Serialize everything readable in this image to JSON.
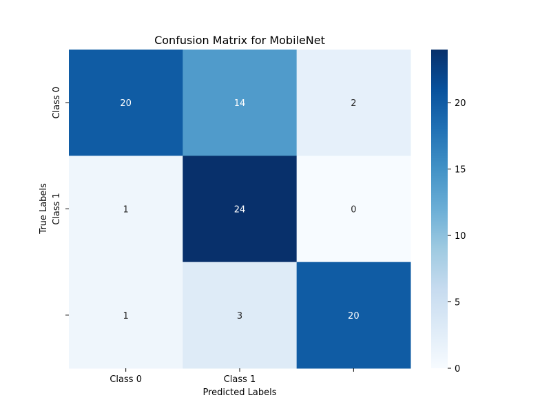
{
  "chart_data": {
    "type": "heatmap",
    "title": "Confusion Matrix for MobileNet",
    "xlabel": "Predicted Labels",
    "ylabel": "True Labels",
    "x_tick_labels": [
      "Class 0",
      "Class 1",
      ""
    ],
    "y_tick_labels": [
      "Class 0",
      "Class 1",
      ""
    ],
    "matrix": [
      [
        20,
        14,
        2
      ],
      [
        1,
        24,
        0
      ],
      [
        1,
        3,
        20
      ]
    ],
    "colormap": "Blues",
    "vmin": 0,
    "vmax": 24,
    "colorbar_ticks": [
      0,
      5,
      10,
      15,
      20
    ],
    "colors": {
      "text_dark": "#262626",
      "text_light": "#ffffff"
    }
  }
}
